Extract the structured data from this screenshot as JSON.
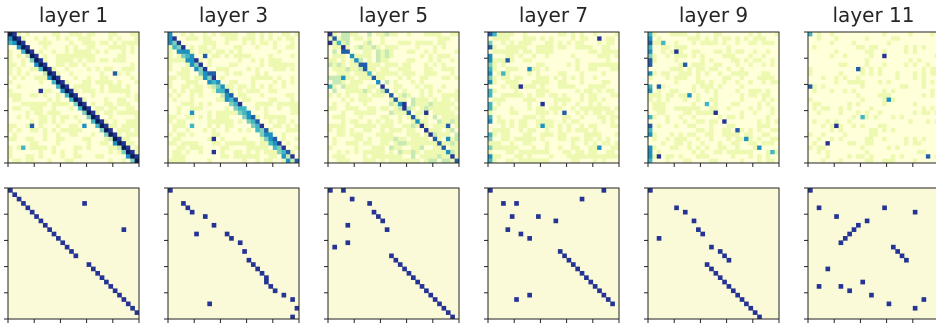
{
  "chart_data": {
    "type": "heatmap",
    "grid_size": 30,
    "colormap": [
      "#ffffd9",
      "#edf8b1",
      "#c7e9b4",
      "#7fcdbb",
      "#41b6c4",
      "#1d91c0",
      "#225ea8",
      "#253494",
      "#081d58"
    ],
    "background_color": "#fbfad8",
    "panel_titles": [
      "layer 1",
      "layer 3",
      "layer 5",
      "layer 7",
      "layer 9",
      "layer 11"
    ],
    "rows": [
      {
        "name": "",
        "description_values": "continuous attention weights",
        "panels": [
          {
            "title": "layer 1",
            "pattern": "diagonal",
            "diag_offsets": [
              0,
              1
            ],
            "hotspots": [
              [
                2,
                0
              ],
              [
                13,
                7
              ],
              [
                9,
                24
              ],
              [
                21,
                5
              ],
              [
                21,
                17
              ],
              [
                26,
                3
              ]
            ]
          },
          {
            "title": "layer 3",
            "pattern": "diagonal_band",
            "diag_offsets": [
              0,
              1,
              2
            ],
            "hotspots": [
              [
                0,
                0
              ],
              [
                3,
                3
              ],
              [
                5,
                8
              ],
              [
                9,
                10
              ],
              [
                18,
                5
              ],
              [
                21,
                5
              ],
              [
                24,
                10
              ],
              [
                27,
                10
              ],
              [
                29,
                29
              ]
            ]
          },
          {
            "title": "layer 5",
            "pattern": "two_blocks",
            "diag_offsets": [
              0
            ],
            "hotspots": [
              [
                0,
                0
              ],
              [
                2,
                0
              ],
              [
                4,
                3
              ],
              [
                7,
                8
              ],
              [
                10,
                3
              ],
              [
                12,
                0
              ],
              [
                16,
                17
              ],
              [
                18,
                22
              ],
              [
                21,
                27
              ],
              [
                24,
                27
              ]
            ]
          },
          {
            "title": "layer 7",
            "pattern": "sparse_first_column",
            "diag_offsets": [],
            "hotspots": [
              [
                0,
                1
              ],
              [
                1,
                25
              ],
              [
                3,
                0
              ],
              [
                6,
                4
              ],
              [
                8,
                9
              ],
              [
                9,
                3
              ],
              [
                12,
                7
              ],
              [
                16,
                12
              ],
              [
                18,
                17
              ],
              [
                21,
                12
              ],
              [
                26,
                25
              ]
            ]
          },
          {
            "title": "layer 9",
            "pattern": "sparse_first_column",
            "diag_offsets": [],
            "hotspots": [
              [
                2,
                3
              ],
              [
                4,
                6
              ],
              [
                7,
                8
              ],
              [
                12,
                2
              ],
              [
                14,
                9
              ],
              [
                16,
                13
              ],
              [
                18,
                15
              ],
              [
                20,
                17
              ],
              [
                22,
                20
              ],
              [
                24,
                22
              ],
              [
                26,
                25
              ],
              [
                27,
                28
              ],
              [
                28,
                2
              ]
            ]
          },
          {
            "title": "layer 11",
            "pattern": "mostly_uniform",
            "diag_offsets": [],
            "hotspots": [
              [
                0,
                0
              ],
              [
                5,
                17
              ],
              [
                8,
                11
              ],
              [
                12,
                0
              ],
              [
                15,
                18
              ],
              [
                19,
                12
              ],
              [
                21,
                6
              ],
              [
                25,
                4
              ],
              [
                28,
                27
              ]
            ]
          }
        ]
      },
      {
        "name": "",
        "description_values": "binary (thresholded) attention",
        "panels": [
          {
            "title": "layer 1",
            "cells": [
              [
                0,
                0
              ],
              [
                1,
                1
              ],
              [
                2,
                2
              ],
              [
                3,
                3
              ],
              [
                4,
                4
              ],
              [
                5,
                5
              ],
              [
                6,
                6
              ],
              [
                7,
                7
              ],
              [
                8,
                8
              ],
              [
                9,
                9
              ],
              [
                10,
                10
              ],
              [
                11,
                11
              ],
              [
                12,
                12
              ],
              [
                13,
                13
              ],
              [
                14,
                14
              ],
              [
                15,
                15
              ],
              [
                17,
                18
              ],
              [
                18,
                19
              ],
              [
                19,
                20
              ],
              [
                20,
                21
              ],
              [
                21,
                22
              ],
              [
                22,
                23
              ],
              [
                23,
                24
              ],
              [
                24,
                25
              ],
              [
                25,
                26
              ],
              [
                26,
                27
              ],
              [
                27,
                28
              ],
              [
                28,
                29
              ],
              [
                3,
                17
              ],
              [
                9,
                26
              ]
            ]
          },
          {
            "title": "layer 3",
            "cells": [
              [
                0,
                0
              ],
              [
                3,
                3
              ],
              [
                4,
                4
              ],
              [
                5,
                5
              ],
              [
                6,
                8
              ],
              [
                8,
                10
              ],
              [
                10,
                6
              ],
              [
                10,
                13
              ],
              [
                11,
                14
              ],
              [
                12,
                16
              ],
              [
                14,
                17
              ],
              [
                16,
                18
              ],
              [
                17,
                19
              ],
              [
                18,
                20
              ],
              [
                19,
                21
              ],
              [
                20,
                22
              ],
              [
                21,
                22
              ],
              [
                22,
                23
              ],
              [
                23,
                24
              ],
              [
                24,
                26
              ],
              [
                25,
                28
              ],
              [
                26,
                9
              ],
              [
                27,
                29
              ],
              [
                29,
                28
              ]
            ]
          },
          {
            "title": "layer 5",
            "cells": [
              [
                0,
                0
              ],
              [
                0,
                3
              ],
              [
                2,
                5
              ],
              [
                3,
                9
              ],
              [
                5,
                10
              ],
              [
                6,
                11
              ],
              [
                7,
                12
              ],
              [
                8,
                4
              ],
              [
                9,
                13
              ],
              [
                12,
                4
              ],
              [
                13,
                1
              ],
              [
                15,
                14
              ],
              [
                16,
                15
              ],
              [
                17,
                16
              ],
              [
                18,
                17
              ],
              [
                19,
                18
              ],
              [
                20,
                19
              ],
              [
                21,
                20
              ],
              [
                22,
                21
              ],
              [
                23,
                22
              ],
              [
                24,
                23
              ],
              [
                25,
                24
              ],
              [
                26,
                25
              ],
              [
                27,
                26
              ],
              [
                28,
                27
              ],
              [
                29,
                28
              ]
            ]
          },
          {
            "title": "layer 7",
            "cells": [
              [
                0,
                0
              ],
              [
                0,
                26
              ],
              [
                2,
                21
              ],
              [
                3,
                3
              ],
              [
                3,
                6
              ],
              [
                6,
                5
              ],
              [
                6,
                11
              ],
              [
                7,
                15
              ],
              [
                9,
                4
              ],
              [
                10,
                7
              ],
              [
                11,
                9
              ],
              [
                14,
                16
              ],
              [
                15,
                17
              ],
              [
                16,
                18
              ],
              [
                17,
                19
              ],
              [
                18,
                20
              ],
              [
                19,
                21
              ],
              [
                20,
                22
              ],
              [
                21,
                23
              ],
              [
                22,
                24
              ],
              [
                23,
                25
              ],
              [
                24,
                26
              ],
              [
                25,
                27
              ],
              [
                26,
                28
              ],
              [
                25,
                6
              ],
              [
                24,
                9
              ]
            ]
          },
          {
            "title": "layer 9",
            "cells": [
              [
                0,
                0
              ],
              [
                4,
                6
              ],
              [
                5,
                8
              ],
              [
                7,
                10
              ],
              [
                9,
                11
              ],
              [
                10,
                12
              ],
              [
                11,
                2
              ],
              [
                13,
                14
              ],
              [
                14,
                16
              ],
              [
                15,
                17
              ],
              [
                16,
                18
              ],
              [
                17,
                13
              ],
              [
                18,
                14
              ],
              [
                19,
                15
              ],
              [
                20,
                16
              ],
              [
                21,
                17
              ],
              [
                22,
                18
              ],
              [
                23,
                19
              ],
              [
                24,
                20
              ],
              [
                25,
                21
              ],
              [
                26,
                22
              ],
              [
                27,
                23
              ],
              [
                28,
                24
              ],
              [
                29,
                25
              ]
            ]
          },
          {
            "title": "layer 11",
            "cells": [
              [
                0,
                0
              ],
              [
                4,
                2
              ],
              [
                4,
                17
              ],
              [
                5,
                24
              ],
              [
                6,
                6
              ],
              [
                7,
                13
              ],
              [
                8,
                11
              ],
              [
                9,
                10
              ],
              [
                10,
                9
              ],
              [
                11,
                8
              ],
              [
                12,
                7
              ],
              [
                13,
                19
              ],
              [
                14,
                20
              ],
              [
                15,
                21
              ],
              [
                16,
                22
              ],
              [
                18,
                4
              ],
              [
                21,
                12
              ],
              [
                22,
                2
              ],
              [
                22,
                7
              ],
              [
                23,
                9
              ],
              [
                24,
                14
              ],
              [
                25,
                26
              ],
              [
                26,
                18
              ],
              [
                27,
                24
              ]
            ]
          }
        ]
      }
    ],
    "xlabel": "",
    "ylabel": ""
  }
}
